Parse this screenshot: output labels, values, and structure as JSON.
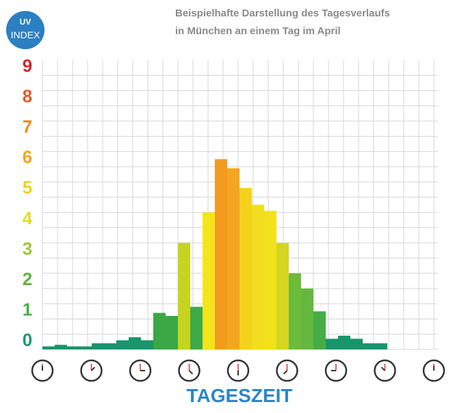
{
  "chart_data": {
    "type": "bar",
    "title_lines": [
      "Beispielhafte Darstellung des Tagesverlaufs",
      "in München an einem Tag im April"
    ],
    "logo": [
      "UV",
      "INDEX"
    ],
    "x_label": "TAGESZEIT",
    "values": [
      0.1,
      0.15,
      0.1,
      0.1,
      0.2,
      0.2,
      0.3,
      0.4,
      0.3,
      1.2,
      1.1,
      3.5,
      1.4,
      4.5,
      6.25,
      5.95,
      5.3,
      4.75,
      4.55,
      3.5,
      2.5,
      2.0,
      1.25,
      0.35,
      0.45,
      0.35,
      0.2,
      0.2
    ],
    "colors": [
      "#17956b",
      "#17956b",
      "#17956b",
      "#17956b",
      "#17956b",
      "#17956b",
      "#17956b",
      "#17956b",
      "#17956b",
      "#3aa845",
      "#3aa845",
      "#c6d420",
      "#3daa48",
      "#f4e41b",
      "#f39a1f",
      "#f4a622",
      "#f3d21e",
      "#f2dd20",
      "#f1e21c",
      "#d4d622",
      "#6cbb3a",
      "#66b83c",
      "#45ad45",
      "#17956b",
      "#17956b",
      "#17956b",
      "#17956b",
      "#17956b"
    ],
    "ylim": [
      0,
      9.5
    ],
    "yticks": [
      0,
      1,
      2,
      3,
      4,
      5,
      6,
      7,
      8,
      9
    ],
    "ytick_colors": [
      "#1b9a6c",
      "#47ad45",
      "#5db43d",
      "#9fc53a",
      "#e3dc20",
      "#f1d21a",
      "#f2a51c",
      "#ee8a20",
      "#e8592a",
      "#d8262e"
    ],
    "grid": true
  }
}
